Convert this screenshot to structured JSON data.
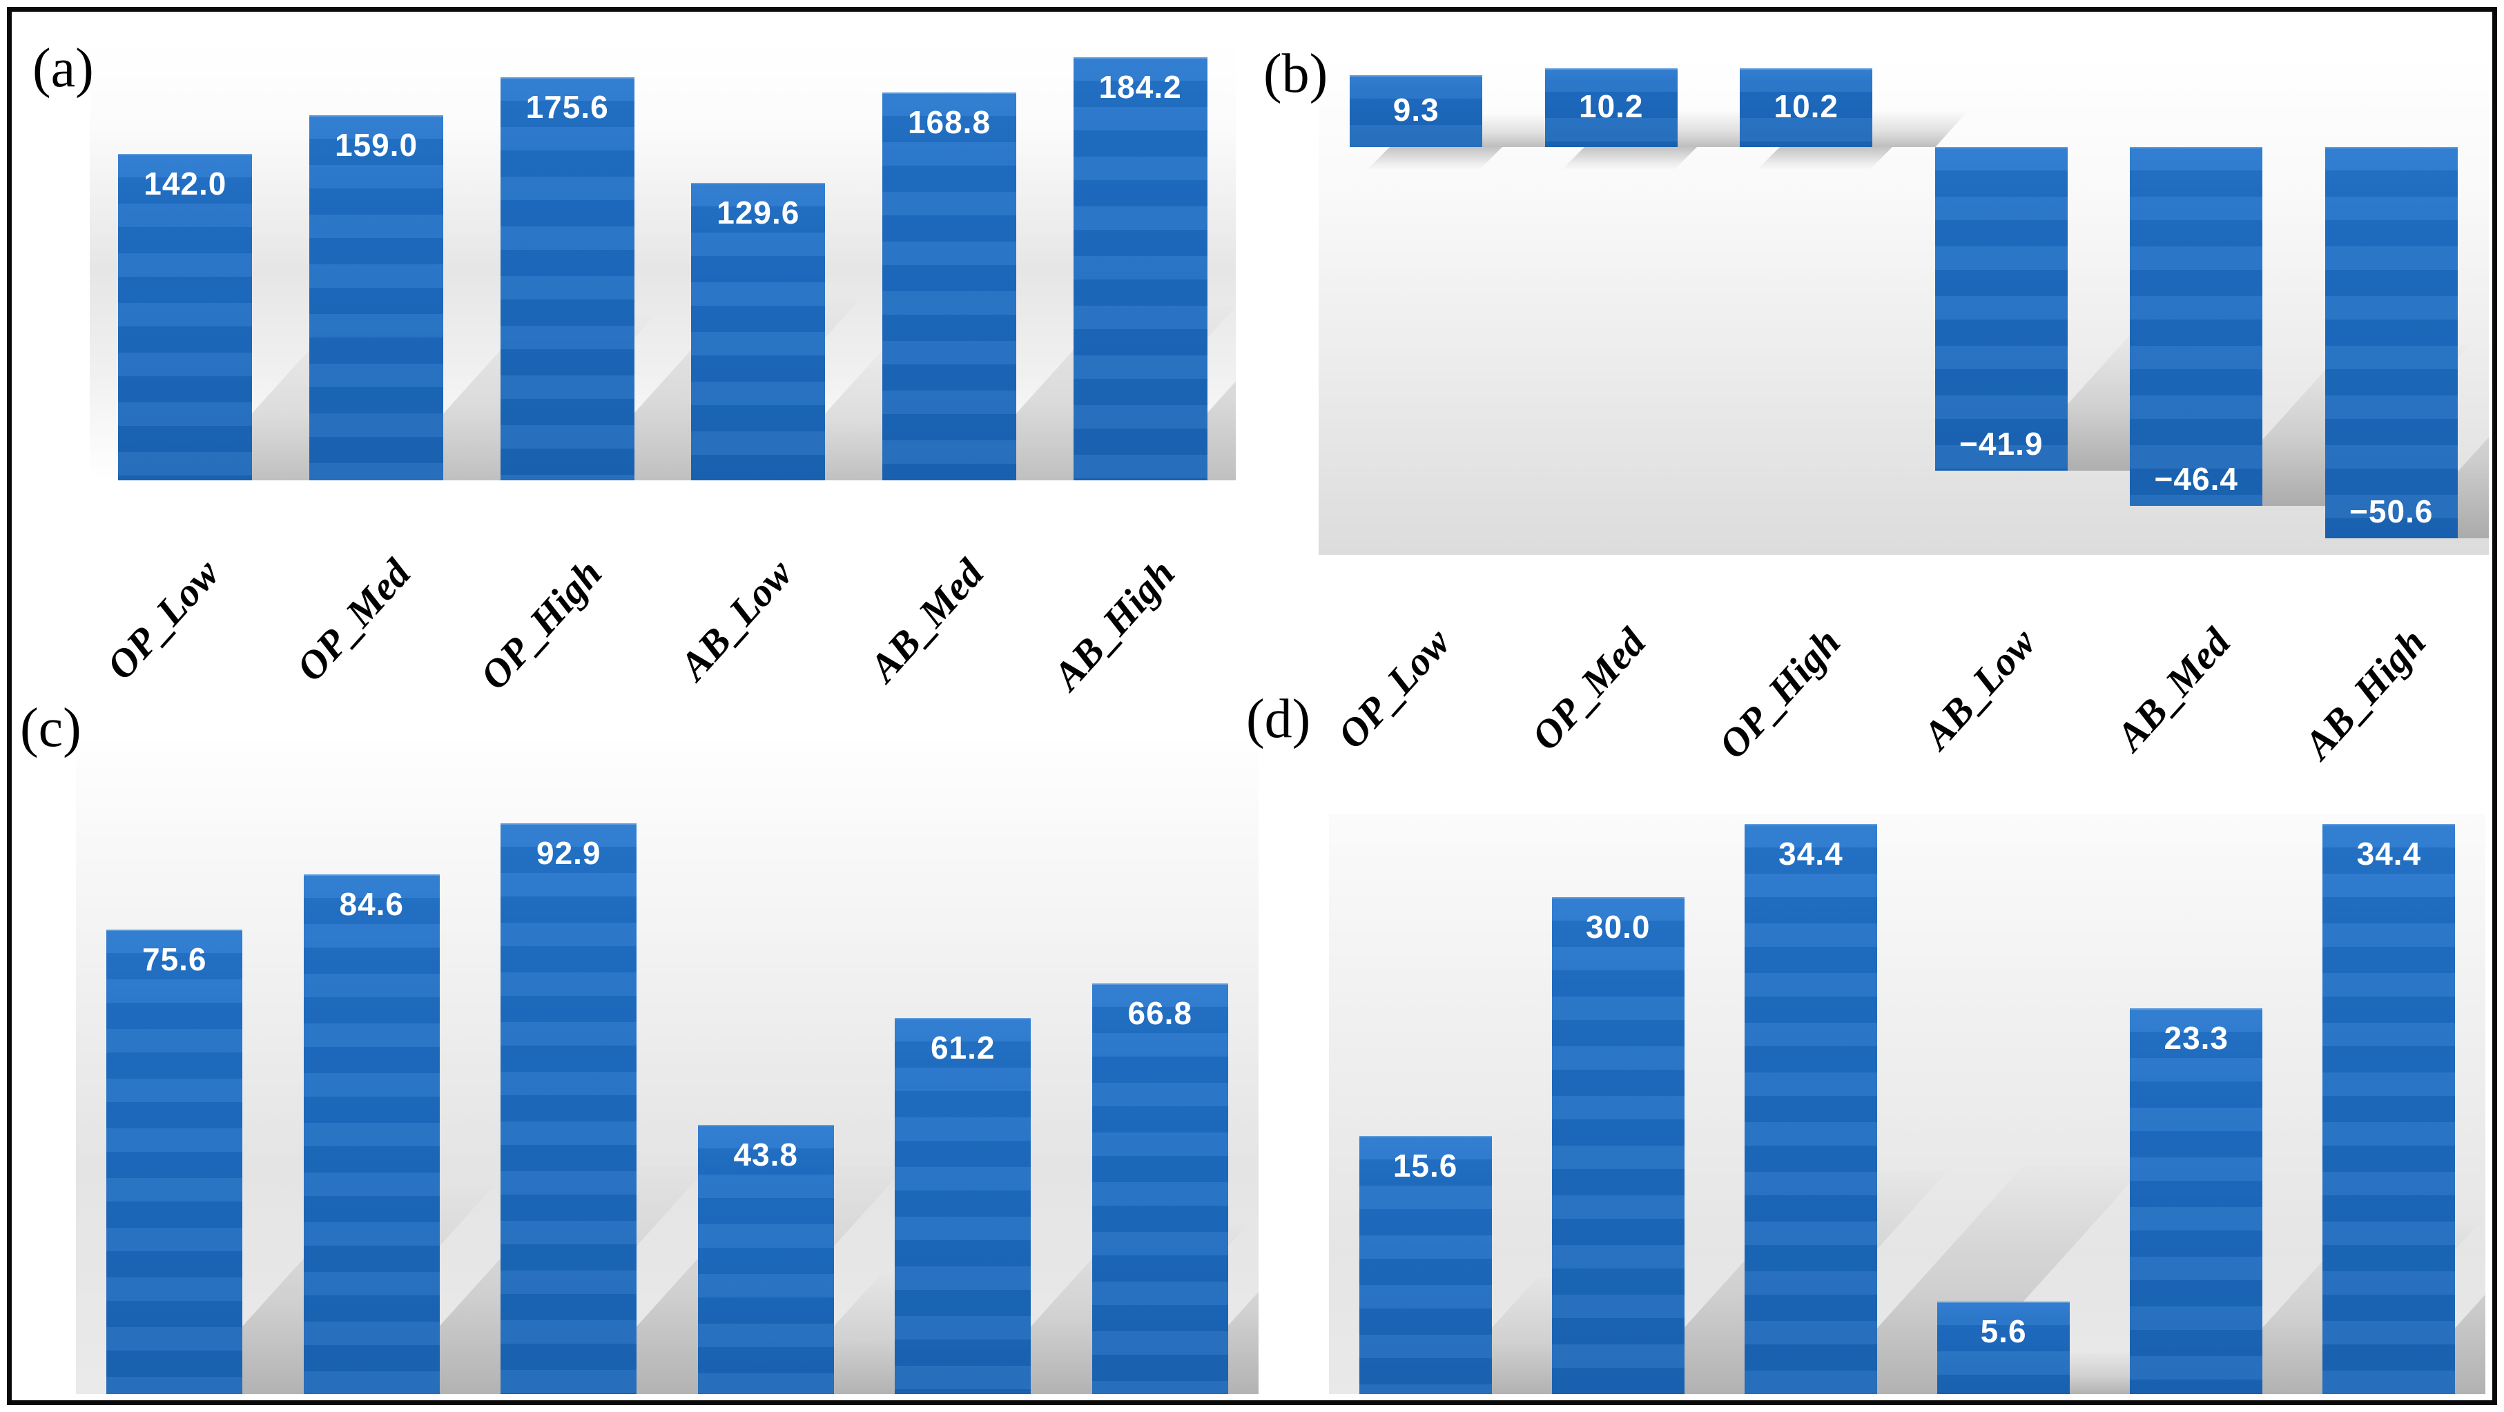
{
  "figure": {
    "border_color": "#0a0a0a",
    "background": "#ffffff",
    "bar_color": "#1d6bc0",
    "bar_label_color": "#ffffff",
    "axis_label_color": "#000000",
    "shadow_color": "#8c8c8c",
    "panels": [
      {
        "letter": "(a)"
      },
      {
        "letter": "(b)"
      },
      {
        "letter": "(c)"
      },
      {
        "letter": "(d)"
      }
    ]
  },
  "chart_data": [
    {
      "type": "bar",
      "panel": "(a)",
      "title": "",
      "categories": [
        "OP_Low",
        "OP_Med",
        "OP_High",
        "AB_Low",
        "AB_Med",
        "AB_High"
      ],
      "values": [
        142.0,
        159.0,
        175.6,
        129.6,
        168.8,
        184.2
      ],
      "data_labels": [
        "142.0",
        "159.0",
        "175.6",
        "129.6",
        "168.8",
        "184.2"
      ],
      "data_label_position": "inside_top",
      "x_tick_labels_visible": true,
      "x_tick_label_angle_deg": -48,
      "ylim": [
        0,
        191
      ],
      "grid": false,
      "legend": false,
      "bar_color": "#1d6bc0"
    },
    {
      "type": "bar",
      "panel": "(b)",
      "title": "",
      "categories": [
        "OP_Low",
        "OP_Med",
        "OP_High",
        "AB_Low",
        "AB_Med",
        "AB_High"
      ],
      "values": [
        9.3,
        10.2,
        10.2,
        -41.9,
        -46.4,
        -50.6
      ],
      "data_labels": [
        "9.3",
        "10.2",
        "10.2",
        "−41.9",
        "−46.4",
        "−50.6"
      ],
      "data_label_position": "inside_end",
      "x_tick_labels_visible": true,
      "x_tick_label_angle_deg": -48,
      "ylim": [
        -53,
        12
      ],
      "grid": false,
      "legend": false,
      "bar_color": "#1d6bc0"
    },
    {
      "type": "bar",
      "panel": "(c)",
      "title": "",
      "categories": [
        "OP_Low",
        "OP_Med",
        "OP_High",
        "AB_Low",
        "AB_Med",
        "AB_High"
      ],
      "values": [
        75.6,
        84.6,
        92.9,
        43.8,
        61.2,
        66.8
      ],
      "data_labels": [
        "75.6",
        "84.6",
        "92.9",
        "43.8",
        "61.2",
        "66.8"
      ],
      "data_label_position": "inside_top",
      "x_tick_labels_visible": false,
      "ylim": [
        0,
        106
      ],
      "grid": false,
      "legend": false,
      "bar_color": "#1d6bc0"
    },
    {
      "type": "bar",
      "panel": "(d)",
      "title": "",
      "categories": [
        "OP_Low",
        "OP_Med",
        "OP_High",
        "AB_Low",
        "AB_Med",
        "AB_High"
      ],
      "values": [
        15.6,
        30.0,
        34.4,
        5.6,
        23.3,
        34.4
      ],
      "data_labels": [
        "15.6",
        "30.0",
        "34.4",
        "5.6",
        "23.3",
        "34.4"
      ],
      "data_label_position": "inside_top",
      "x_tick_labels_visible": false,
      "ylim": [
        0,
        35
      ],
      "grid": false,
      "legend": false,
      "bar_color": "#1d6bc0"
    }
  ]
}
